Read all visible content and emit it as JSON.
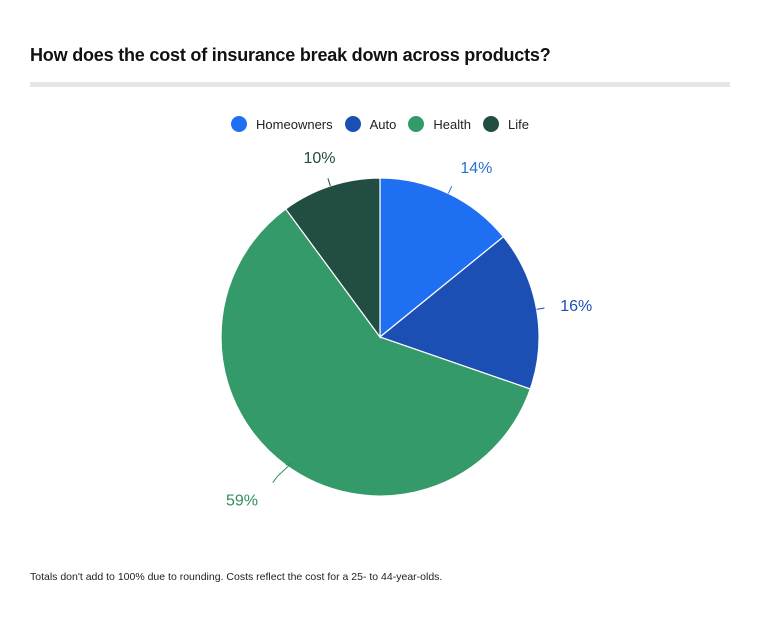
{
  "title": "How does the cost of insurance break down across products?",
  "footnote": "Totals don't add to 100% due to rounding. Costs reflect the cost for a 25- to 44-year-olds.",
  "chart_data": {
    "type": "pie",
    "title": "How does the cost of insurance break down across products?",
    "legend_position": "top",
    "categories": [
      "Homeowners",
      "Auto",
      "Health",
      "Life"
    ],
    "values": [
      14,
      16,
      59,
      10
    ],
    "labels": [
      "14%",
      "16%",
      "59%",
      "10%"
    ],
    "colors": [
      "#1f6ff2",
      "#1c4fb3",
      "#359a69",
      "#214d42"
    ],
    "label_colors": [
      "#2a6fd6",
      "#1c4fb3",
      "#2f8f5e",
      "#214d42"
    ]
  }
}
